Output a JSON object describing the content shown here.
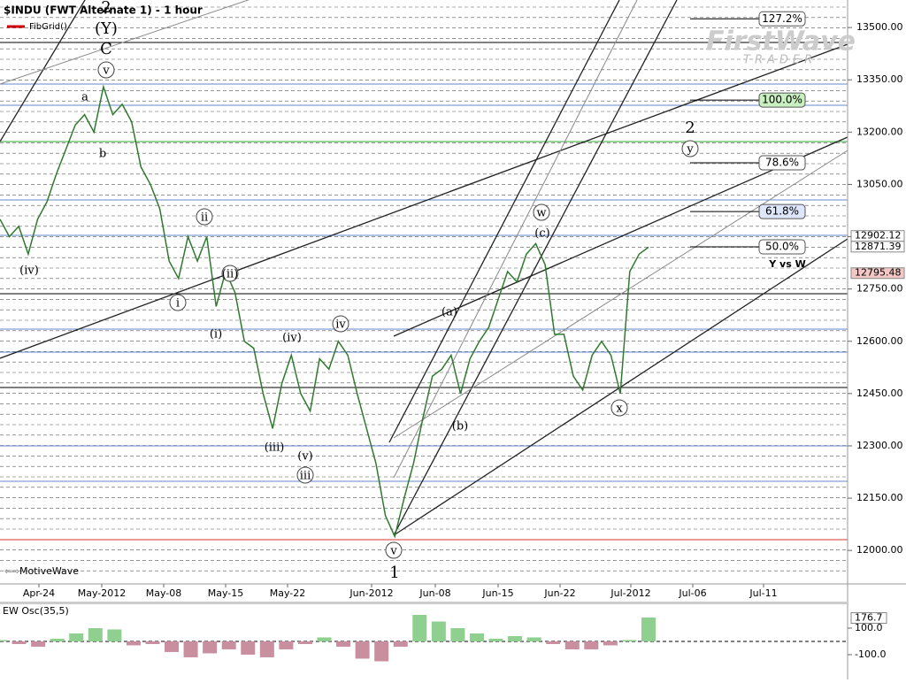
{
  "header": {
    "title": "$INDU (FWT Alternate 1) - 1 hour",
    "study": "FibGrid()",
    "footer": "MotiveWave",
    "logo": "FirstWave",
    "logo_sub": "TRADER"
  },
  "chart_data": {
    "type": "line",
    "name": "$INDU",
    "color": "#2f7a2f",
    "values": [
      12950,
      12900,
      12930,
      12850,
      12950,
      13000,
      13080,
      13150,
      13220,
      13250,
      13200,
      13330,
      13250,
      13280,
      13230,
      13100,
      13050,
      12980,
      12830,
      12780,
      12900,
      12830,
      12900,
      12700,
      12800,
      12740,
      12600,
      12580,
      12450,
      12350,
      12480,
      12560,
      12450,
      12400,
      12550,
      12520,
      12600,
      12560,
      12450,
      12350,
      12250,
      12100,
      12040,
      12150,
      12250,
      12380,
      12500,
      12520,
      12560,
      12450,
      12550,
      12600,
      12640,
      12720,
      12800,
      12770,
      12850,
      12880,
      12820,
      12620,
      12620,
      12500,
      12460,
      12560,
      12600,
      12560,
      12450,
      12800,
      12850,
      12870
    ],
    "ylim": [
      11904,
      13579
    ],
    "yticks": [
      {
        "value": 13500,
        "label": "13500.00"
      },
      {
        "value": 13350,
        "label": "13350.00"
      },
      {
        "value": 13200,
        "label": "13200.00"
      },
      {
        "value": 13050,
        "label": "13050.00"
      },
      {
        "value": 12900,
        "label": "12900.00"
      },
      {
        "value": 12750,
        "label": "12750.00"
      },
      {
        "value": 12600,
        "label": "12600.00"
      },
      {
        "value": 12450,
        "label": "12450.00"
      },
      {
        "value": 12300,
        "label": "12300.00"
      },
      {
        "value": 12150,
        "label": "12150.00"
      },
      {
        "value": 12000,
        "label": "12000.00"
      }
    ],
    "price_labels": [
      {
        "value": 12902.12,
        "label": "12902.12"
      },
      {
        "value": 12871.39,
        "label": "12871.39"
      },
      {
        "value": 12795.48,
        "label": "12795.48"
      }
    ],
    "date_labels": [
      "Apr-24",
      "May-2012",
      "May-08",
      "May-15",
      "May-22",
      "Jun-2012",
      "Jun-08",
      "Jun-15",
      "Jun-22",
      "Jul-2012",
      "Jul-06",
      "Jul-11"
    ],
    "fib_levels": [
      {
        "label": "127.2%",
        "price": 13525
      },
      {
        "label": "100.0%",
        "price": 13292
      },
      {
        "label": "78.6%",
        "price": 13112
      },
      {
        "label": "61.8%",
        "price": 12972
      },
      {
        "label": "50.0%",
        "price": 12871
      }
    ],
    "wave_labels": [
      "2",
      "(Y)",
      "C",
      "v",
      "a",
      "b",
      "(iv)",
      "ii",
      "(ii)",
      "i",
      "(i)",
      "(iv)",
      "iv",
      "(iii)",
      "(v)",
      "iii",
      "v",
      "1",
      "(a)",
      "(b)",
      "w",
      "(c)",
      "x",
      "y",
      "2",
      "Y vs W"
    ]
  },
  "oscillator": {
    "title": "EW Osc(35,5)",
    "type": "bar",
    "values": [
      10,
      -20,
      -40,
      20,
      60,
      100,
      90,
      -30,
      -20,
      -80,
      -120,
      -90,
      -60,
      -100,
      -120,
      -60,
      -20,
      30,
      -40,
      -130,
      -150,
      -40,
      200,
      150,
      100,
      60,
      20,
      40,
      30,
      -20,
      -60,
      -60,
      -30,
      10,
      180
    ],
    "ylim": [
      -287,
      280
    ],
    "yticks": [
      {
        "value": 100,
        "label": "100.0"
      },
      {
        "value": -100,
        "label": "-100.0"
      }
    ],
    "current": {
      "value": 176.7,
      "label": "176.7"
    }
  }
}
